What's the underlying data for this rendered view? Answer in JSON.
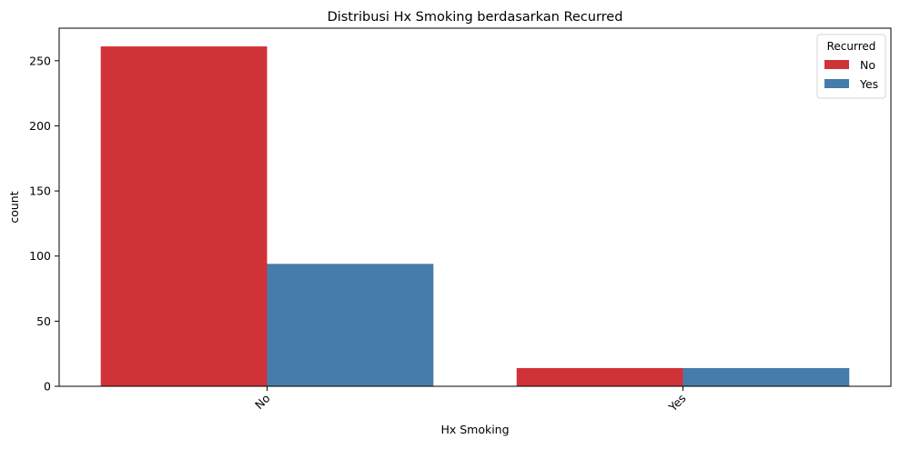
{
  "chart_data": {
    "type": "bar",
    "title": "Distribusi Hx Smoking berdasarkan Recurred",
    "xlabel": "Hx Smoking",
    "ylabel": "count",
    "categories": [
      "No",
      "Yes"
    ],
    "series": [
      {
        "name": "No",
        "color": "#d03337",
        "values": [
          261,
          14
        ]
      },
      {
        "name": "Yes",
        "color": "#467cab",
        "values": [
          94,
          14
        ]
      }
    ],
    "ylim": [
      0,
      275
    ],
    "yticks": [
      0,
      50,
      100,
      150,
      200,
      250
    ],
    "xtick_rotation_deg": 45,
    "grid": false,
    "legend": {
      "title": "Recurred",
      "placement": "top-right"
    }
  }
}
